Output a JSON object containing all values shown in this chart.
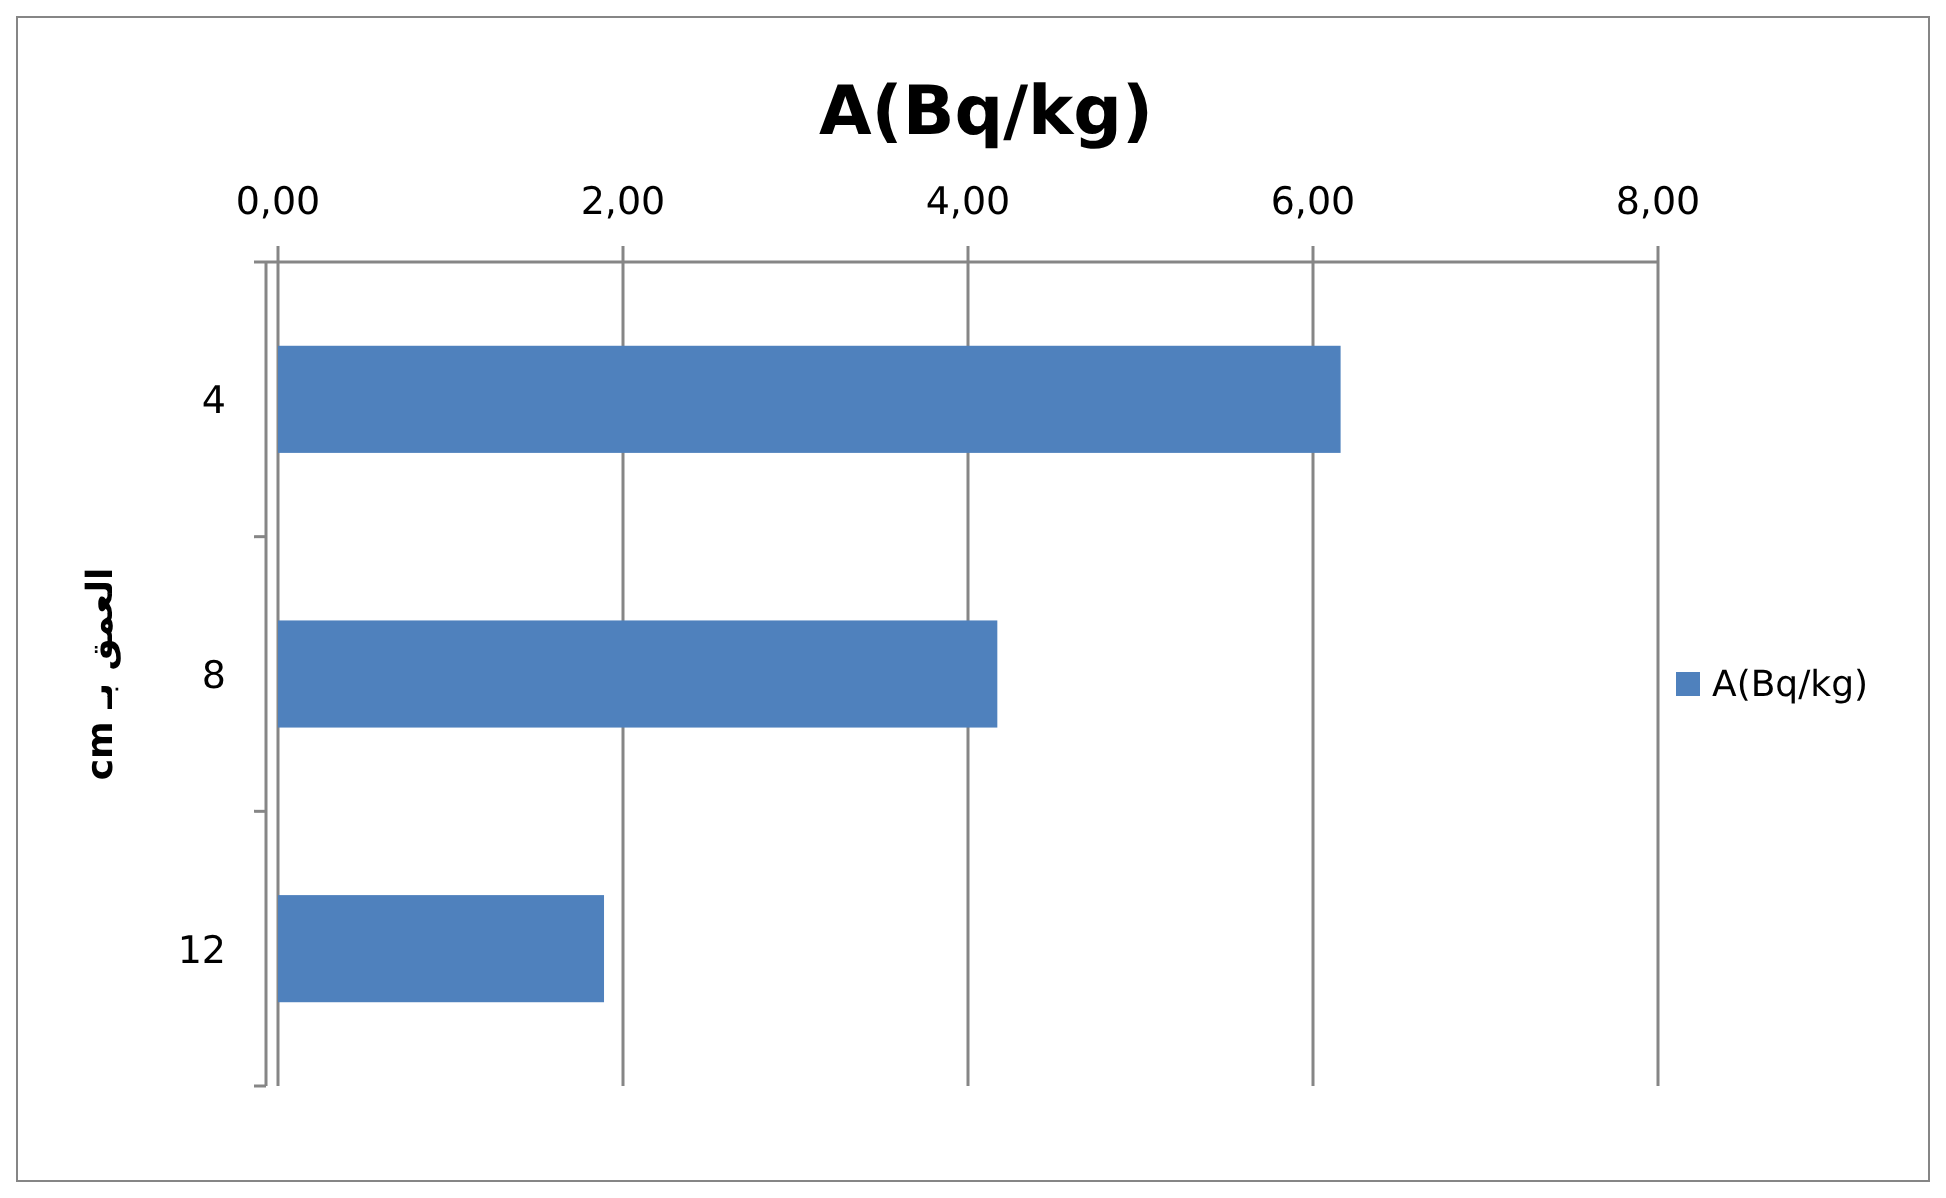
{
  "chart_data": {
    "type": "bar",
    "orientation": "horizontal",
    "title": "A(Bq/kg)",
    "ylabel": "العمق بـ cm",
    "categories": [
      "4",
      "8",
      "12"
    ],
    "series": [
      {
        "name": "A(Bq/kg)",
        "color": "#4f81bd",
        "values": [
          6.16,
          4.17,
          1.89
        ]
      }
    ],
    "xlim": [
      0,
      8
    ],
    "xticks": [
      {
        "value": 0,
        "label": "0,00"
      },
      {
        "value": 2,
        "label": "2,00"
      },
      {
        "value": 4,
        "label": "4,00"
      },
      {
        "value": 6,
        "label": "6,00"
      },
      {
        "value": 8,
        "label": "8,00"
      }
    ],
    "grid": "x",
    "legend": "right"
  }
}
